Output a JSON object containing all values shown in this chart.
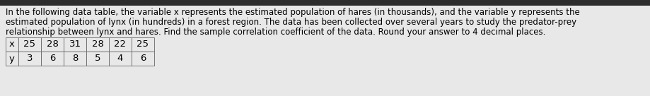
{
  "line1": "In the following data table, the variable x represents the estimated population of hares (in thousands), and the variable y represents the",
  "line2": "estimated population of lynx (in hundreds) in a forest region. The data has been collected over several years to study the predator-prey",
  "line3": "relationship between lynx and hares. Find the sample correlation coefficient of the data. Round your answer to 4 decimal places.",
  "x_values": [
    "25",
    "28",
    "31",
    "28",
    "22",
    "25"
  ],
  "y_values": [
    "3",
    "6",
    "8",
    "5",
    "4",
    "6"
  ],
  "bg_color": "#e8e8e8",
  "text_color": "#000000",
  "font_size": 8.5,
  "table_font_size": 9.5,
  "table_row_labels": [
    "x",
    "y"
  ],
  "top_bar_color": "#2d2d2d"
}
